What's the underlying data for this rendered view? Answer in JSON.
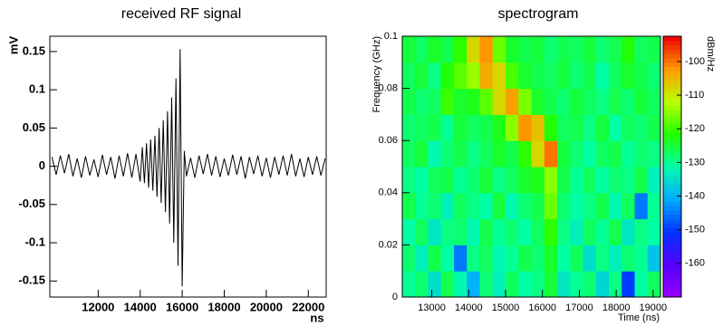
{
  "chart_data": [
    {
      "type": "line",
      "title": "received RF signal",
      "xlabel": "ns",
      "ylabel": "mV",
      "color": "#000000",
      "x": [
        9800,
        10000,
        10200,
        10400,
        10600,
        10800,
        11000,
        11200,
        11400,
        11600,
        11800,
        12000,
        12200,
        12400,
        12600,
        12800,
        13000,
        13200,
        13400,
        13600,
        13800,
        14000,
        14100,
        14200,
        14300,
        14400,
        14500,
        14600,
        14700,
        14800,
        14900,
        15000,
        15100,
        15200,
        15300,
        15400,
        15500,
        15600,
        15700,
        15800,
        15900,
        16000,
        16100,
        16200,
        16400,
        16600,
        16800,
        17000,
        17200,
        17400,
        17600,
        17800,
        18000,
        18200,
        18400,
        18600,
        18800,
        19000,
        19200,
        19400,
        19600,
        19800,
        20000,
        20200,
        20400,
        20600,
        20800,
        21000,
        21200,
        21400,
        21600,
        21800,
        22000,
        22200,
        22400,
        22600,
        22800
      ],
      "values": [
        0.012,
        -0.011,
        0.014,
        -0.009,
        0.016,
        -0.013,
        0.01,
        -0.015,
        0.013,
        -0.012,
        0.009,
        -0.014,
        0.015,
        -0.011,
        0.012,
        -0.016,
        0.014,
        -0.013,
        0.017,
        -0.015,
        0.016,
        -0.02,
        0.025,
        -0.022,
        0.03,
        -0.028,
        0.035,
        -0.032,
        0.04,
        -0.04,
        0.05,
        -0.048,
        0.06,
        -0.06,
        0.072,
        -0.075,
        0.09,
        -0.1,
        0.115,
        -0.13,
        0.153,
        -0.157,
        0.02,
        -0.013,
        0.011,
        -0.015,
        0.014,
        -0.01,
        0.016,
        -0.012,
        0.013,
        -0.014,
        0.01,
        -0.012,
        0.015,
        -0.011,
        0.013,
        -0.016,
        0.012,
        -0.01,
        0.014,
        -0.013,
        0.011,
        -0.015,
        0.012,
        -0.011,
        0.014,
        -0.012,
        0.016,
        -0.013,
        0.01,
        -0.014,
        0.012,
        -0.011,
        0.013,
        -0.012,
        0.01
      ],
      "xlim": [
        9700,
        22850
      ],
      "xticks": [
        12000,
        14000,
        16000,
        18000,
        20000,
        22000
      ],
      "ylim": [
        -0.171,
        0.17
      ],
      "yticks": [
        -0.15,
        -0.1,
        -0.05,
        0,
        0.05,
        0.1,
        0.15
      ]
    },
    {
      "type": "heatmap",
      "title": "spectrogram",
      "xlabel": "Time (ns)",
      "ylabel": "Frequency (GHz)",
      "zlabel": "dBm/Hz",
      "x": [
        12375,
        12725,
        13075,
        13425,
        13775,
        14125,
        14475,
        14825,
        15175,
        15525,
        15875,
        16225,
        16575,
        16925,
        17275,
        17625,
        17975,
        18325,
        18675,
        19025
      ],
      "y": [
        0.005,
        0.015,
        0.025,
        0.035,
        0.045,
        0.055,
        0.065,
        0.075,
        0.085,
        0.095
      ],
      "z": [
        [
          -130,
          -128,
          -135,
          -126,
          -132,
          -140,
          -128,
          -133,
          -127,
          -131,
          -129,
          -125,
          -134,
          -130,
          -128,
          -136,
          -129,
          -150,
          -131,
          -127
        ],
        [
          -128,
          -133,
          -126,
          -131,
          -145,
          -129,
          -127,
          -132,
          -130,
          -126,
          -128,
          -124,
          -131,
          -127,
          -135,
          -129,
          -133,
          -128,
          -130,
          -138
        ],
        [
          -131,
          -127,
          -134,
          -129,
          -128,
          -132,
          -126,
          -130,
          -128,
          -131,
          -127,
          -121,
          -129,
          -133,
          -127,
          -130,
          -126,
          -134,
          -129,
          -131
        ],
        [
          -126,
          -130,
          -128,
          -133,
          -127,
          -129,
          -131,
          -125,
          -132,
          -128,
          -126,
          -117,
          -128,
          -131,
          -129,
          -126,
          -132,
          -127,
          -145,
          -130
        ],
        [
          -129,
          -131,
          -127,
          -126,
          -130,
          -128,
          -125,
          -129,
          -127,
          -124,
          -123,
          -115,
          -126,
          -130,
          -127,
          -131,
          -128,
          -129,
          -126,
          -133
        ],
        [
          -127,
          -125,
          -132,
          -128,
          -126,
          -129,
          -127,
          -124,
          -126,
          -121,
          -108,
          -100,
          -125,
          -128,
          -131,
          -127,
          -126,
          -130,
          -128,
          -129
        ],
        [
          -128,
          -127,
          -126,
          -130,
          -125,
          -127,
          -126,
          -123,
          -115,
          -102,
          -106,
          -122,
          -127,
          -126,
          -129,
          -125,
          -131,
          -127,
          -128,
          -126
        ],
        [
          -126,
          -128,
          -127,
          -120,
          -124,
          -123,
          -118,
          -108,
          -103,
          -116,
          -124,
          -126,
          -128,
          -125,
          -127,
          -129,
          -126,
          -128,
          -125,
          -127
        ],
        [
          -127,
          -125,
          -129,
          -122,
          -118,
          -114,
          -104,
          -108,
          -119,
          -124,
          -126,
          -127,
          -125,
          -128,
          -126,
          -131,
          -127,
          -124,
          -126,
          -128
        ],
        [
          -125,
          -127,
          -124,
          -126,
          -121,
          -108,
          -102,
          -117,
          -124,
          -126,
          -125,
          -128,
          -126,
          -127,
          -125,
          -128,
          -126,
          -122,
          -127,
          -126
        ]
      ],
      "xlim": [
        12200,
        19200
      ],
      "xticks": [
        13000,
        14000,
        15000,
        16000,
        17000,
        18000,
        19000
      ],
      "ylim": [
        0,
        0.1
      ],
      "yticks": [
        0,
        0.02,
        0.04,
        0.06,
        0.08,
        0.1
      ],
      "zlim": [
        -170,
        -92.5
      ],
      "zticks": [
        -160,
        -150,
        -140,
        -130,
        -120,
        -110,
        -100
      ],
      "colors": [
        "#9900ff",
        "#5500ff",
        "#0033ff",
        "#00aaff",
        "#00ffaa",
        "#22ff00",
        "#bbff00",
        "#ff9900",
        "#ee0000"
      ]
    }
  ]
}
